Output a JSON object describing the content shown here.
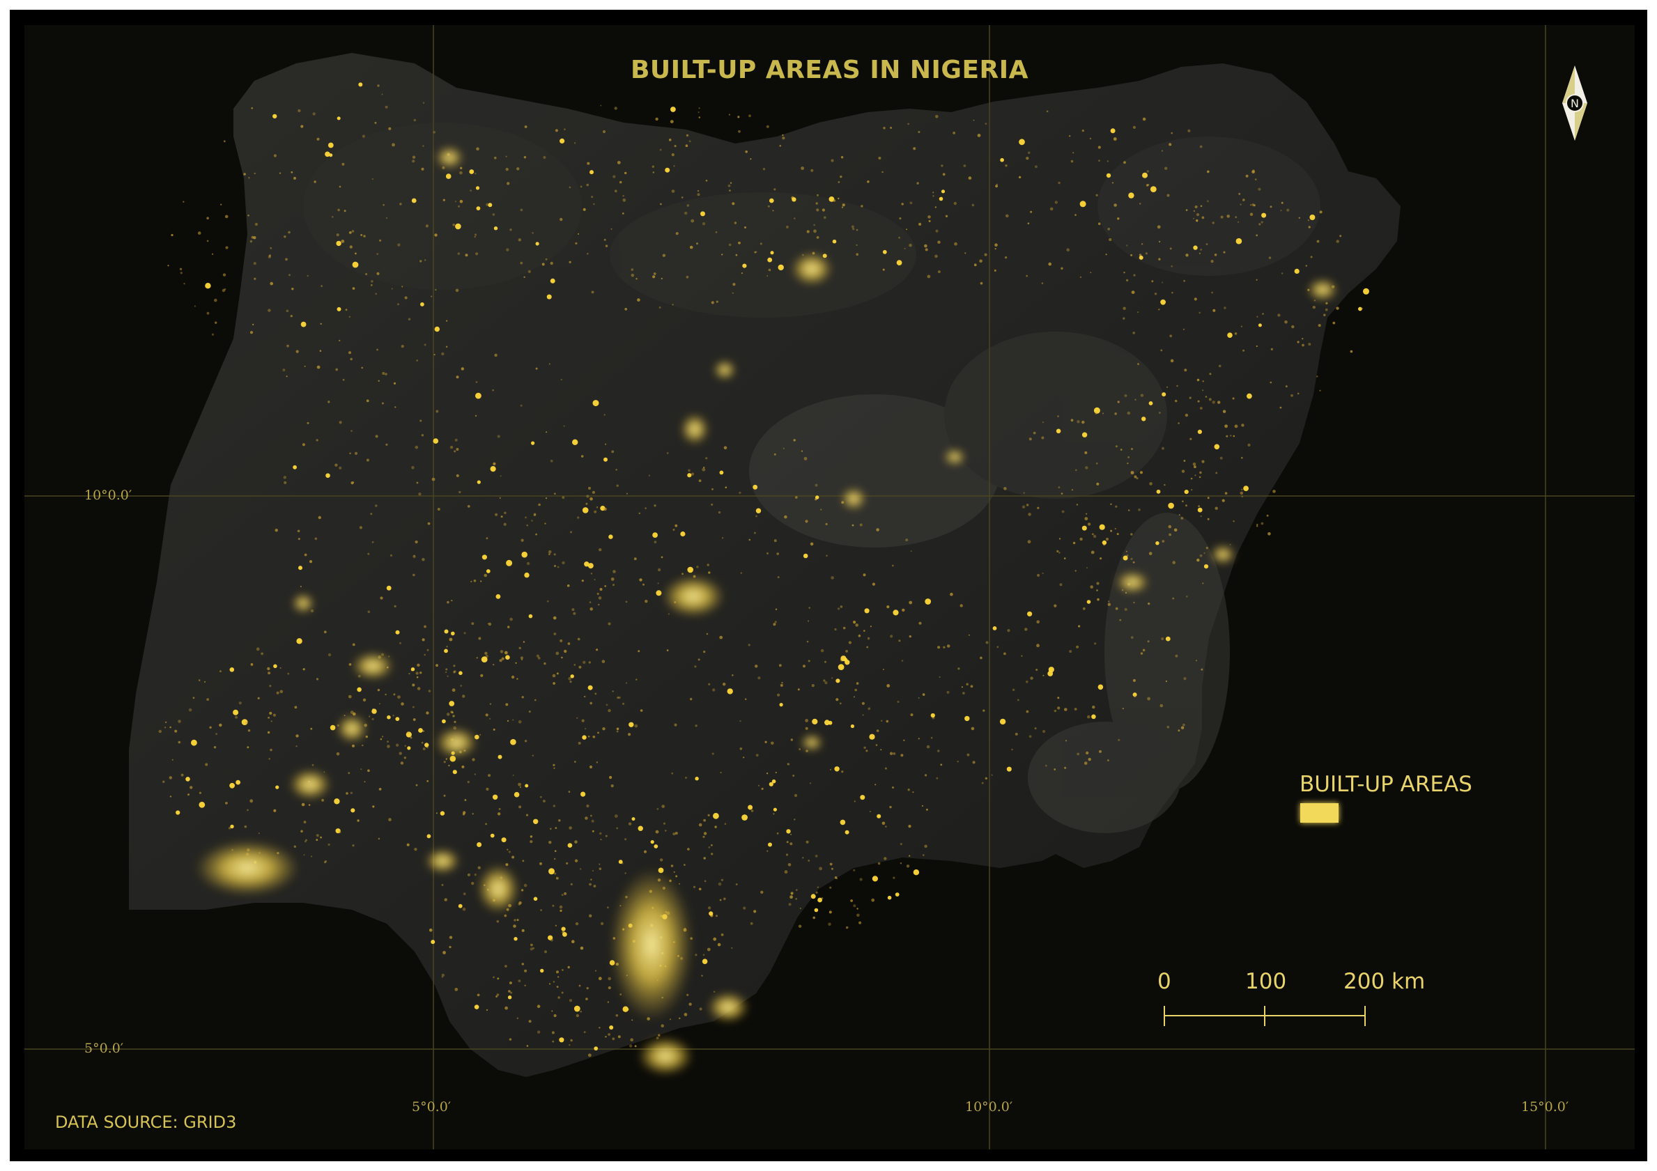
{
  "title": "BUILT-UP AREAS IN NIGERIA",
  "graticule": {
    "lat_labels": [
      "10°0.0′",
      "5°0.0′"
    ],
    "lon_labels": [
      "5°0.0′",
      "10°0.0′",
      "15°0.0′"
    ]
  },
  "legend": {
    "title": "BUILT-UP AREAS",
    "swatch_color": "#f3d95a"
  },
  "scale_bar": {
    "labels": [
      "0",
      "100",
      "200 km"
    ]
  },
  "north_arrow": {
    "label": "N"
  },
  "data_source": "DATA SOURCE: GRID3",
  "colors": {
    "background": "#0b0b08",
    "terrain": "#2a2a28",
    "built_up": "#f3d95a",
    "text": "#c9b84e"
  }
}
